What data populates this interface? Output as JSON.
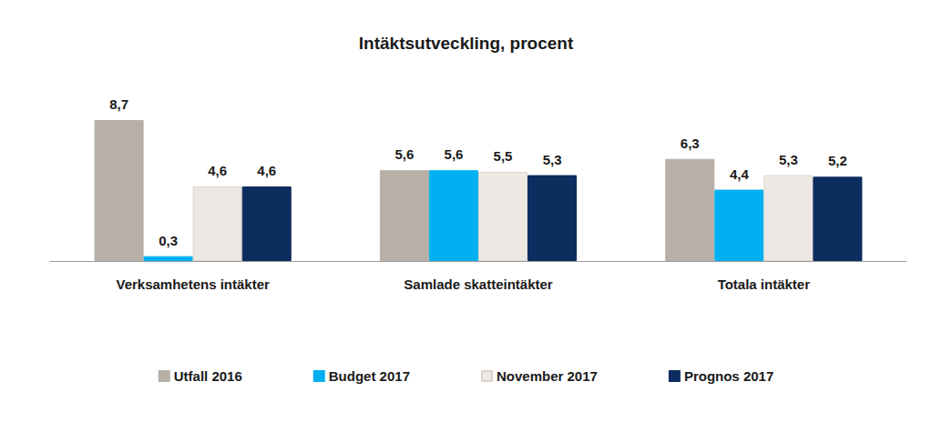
{
  "chart_data": {
    "type": "bar",
    "title": "Intäktsutveckling, procent",
    "categories": [
      "Verksamhetens intäkter",
      "Samlade skatteintäkter",
      "Totala intäkter"
    ],
    "series": [
      {
        "name": "Utfall 2016",
        "color": "#b8b0a7",
        "values": [
          8.7,
          5.6,
          6.3
        ],
        "value_labels": [
          "8,7",
          "5,6",
          "6,3"
        ]
      },
      {
        "name": "Budget 2017",
        "color": "#00b0f0",
        "values": [
          0.3,
          5.6,
          4.4
        ],
        "value_labels": [
          "0,3",
          "5,6",
          "4,4"
        ]
      },
      {
        "name": "November 2017",
        "color": "#ede8e3",
        "values": [
          4.6,
          5.5,
          5.3
        ],
        "value_labels": [
          "4,6",
          "5,5",
          "5,3"
        ]
      },
      {
        "name": "Prognos 2017",
        "color": "#0c2d5e",
        "values": [
          4.6,
          5.3,
          5.2
        ],
        "value_labels": [
          "4,6",
          "5,3",
          "5,2"
        ]
      }
    ],
    "ylim": [
      0,
      11
    ],
    "tick_labels": "x",
    "grid": false,
    "legend": "bottom",
    "data_labels": true
  }
}
